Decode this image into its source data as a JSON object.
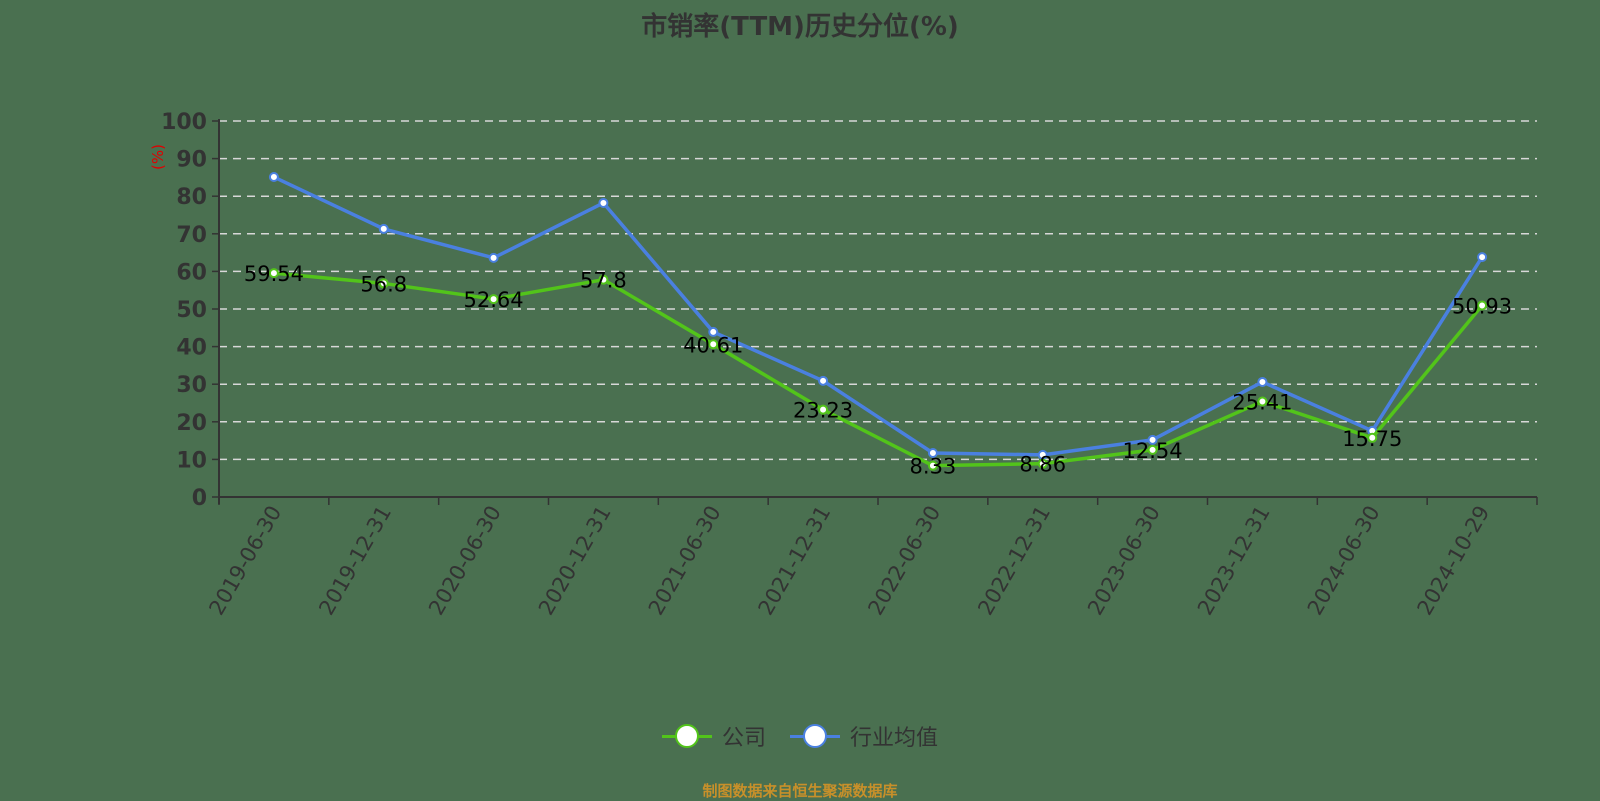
{
  "title": "市销率(TTM)历史分位(%)",
  "source": "制图数据来自恒生聚源数据库",
  "colors": {
    "background": "#4a7050",
    "company": "#52c41a",
    "industry": "#4a80e0",
    "axis": "#333333",
    "unit_label": "#e00000"
  },
  "legend": [
    {
      "name": "公司",
      "color": "#52c41a"
    },
    {
      "name": "行业均值",
      "color": "#4a80e0"
    }
  ],
  "chart_data": {
    "type": "line",
    "title": "市销率(TTM)历史分位(%)",
    "xlabel": "",
    "ylabel": "(%)",
    "ylim": [
      0,
      100
    ],
    "yticks": [
      0,
      10,
      20,
      30,
      40,
      50,
      60,
      70,
      80,
      90,
      100
    ],
    "grid": true,
    "legend_position": "bottom",
    "categories": [
      "2019-06-30",
      "2019-12-31",
      "2020-06-30",
      "2020-12-31",
      "2021-06-30",
      "2021-12-31",
      "2022-06-30",
      "2022-12-31",
      "2023-06-30",
      "2023-12-31",
      "2024-06-30",
      "2024-10-29"
    ],
    "series": [
      {
        "name": "公司",
        "values": [
          59.54,
          56.8,
          52.64,
          57.8,
          40.61,
          23.23,
          8.33,
          8.86,
          12.54,
          25.41,
          15.75,
          50.93
        ],
        "labels": [
          "59.54",
          "56.8",
          "52.64",
          "57.8",
          "40.61",
          "23.23",
          "8.33",
          "8.86",
          "12.54",
          "25.41",
          "15.75",
          "50.93"
        ]
      },
      {
        "name": "行业均值",
        "values": [
          85.1,
          71.3,
          63.6,
          78.2,
          43.9,
          30.9,
          11.7,
          11.2,
          15.2,
          30.6,
          17.6,
          63.8
        ]
      }
    ]
  }
}
